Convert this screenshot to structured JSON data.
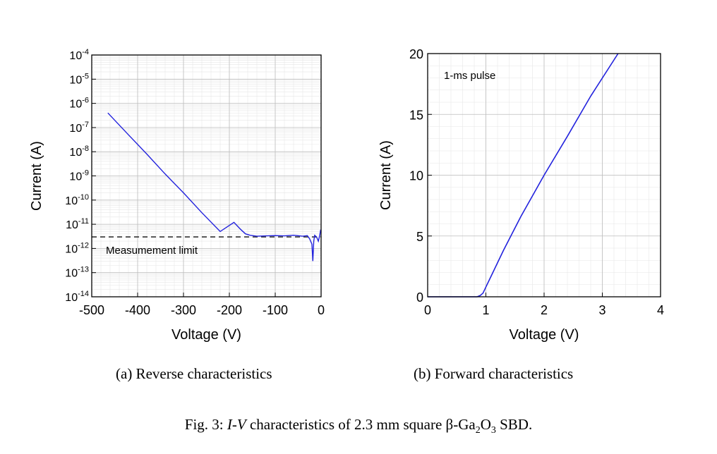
{
  "chart_data": [
    {
      "type": "line",
      "xlabel": "Voltage (V)",
      "ylabel": "Current (A)",
      "xlim": [
        -500,
        0
      ],
      "ylim": [
        1e-14,
        0.0001
      ],
      "yscale": "log",
      "grid": true,
      "x_ticks": [
        "-500",
        "-400",
        "-300",
        "-200",
        "-100",
        "0"
      ],
      "y_ticks": [
        {
          "base": "10",
          "exp": "-4"
        },
        {
          "base": "10",
          "exp": "-5"
        },
        {
          "base": "10",
          "exp": "-6"
        },
        {
          "base": "10",
          "exp": "-7"
        },
        {
          "base": "10",
          "exp": "-8"
        },
        {
          "base": "10",
          "exp": "-9"
        },
        {
          "base": "10",
          "exp": "-10"
        },
        {
          "base": "10",
          "exp": "-11"
        },
        {
          "base": "10",
          "exp": "-12"
        },
        {
          "base": "10",
          "exp": "-13"
        },
        {
          "base": "10",
          "exp": "-14"
        }
      ],
      "series": [
        {
          "color": "#2222dd",
          "x": [
            -465,
            -420,
            -380,
            -340,
            -300,
            -260,
            -220,
            -190,
            -175,
            -165,
            -155,
            -140,
            -120,
            -100,
            -80,
            -60,
            -40,
            -30,
            -25,
            -20,
            -18,
            -16,
            -14,
            -10,
            -6,
            -3,
            -1
          ],
          "y": [
            4e-07,
            5e-08,
            8e-09,
            1.2e-09,
            2e-10,
            3e-11,
            5e-12,
            1.2e-11,
            6e-12,
            4e-12,
            3.5e-12,
            3.2e-12,
            3.3e-12,
            3.4e-12,
            3.3e-12,
            3.5e-12,
            3.2e-12,
            3.4e-12,
            2.5e-12,
            1.5e-12,
            3e-13,
            2e-12,
            3.5e-12,
            3e-12,
            2e-12,
            3.5e-12,
            6e-12
          ]
        }
      ],
      "reference_line": {
        "y": 3e-12,
        "style": "dashed",
        "label": "Measumement limit"
      }
    },
    {
      "type": "line",
      "xlabel": "Voltage (V)",
      "ylabel": "Current (A)",
      "xlim": [
        0,
        4
      ],
      "ylim": [
        0,
        20
      ],
      "grid": true,
      "x_ticks": [
        "0",
        "1",
        "2",
        "3",
        "4"
      ],
      "y_ticks": [
        "0",
        "5",
        "10",
        "15",
        "20"
      ],
      "annotation": "1-ms pulse",
      "series": [
        {
          "color": "#2222dd",
          "x": [
            0,
            0.5,
            0.85,
            0.9,
            0.95,
            1.0,
            1.1,
            1.3,
            1.6,
            2.0,
            2.4,
            2.8,
            3.27
          ],
          "y": [
            0,
            0,
            0,
            0.1,
            0.3,
            0.8,
            1.8,
            3.8,
            6.6,
            10.0,
            13.2,
            16.5,
            20
          ]
        }
      ]
    }
  ],
  "captions": {
    "a": "(a)  Reverse characteristics",
    "b": "(b) Forward characteristics",
    "fig_prefix": "Fig. 3: ",
    "fig_italic": "I-V",
    "fig_rest": " characteristics of 2.3 mm square β-Ga",
    "fig_sub1": "2",
    "fig_mid": "O",
    "fig_sub2": "3",
    "fig_end": " SBD."
  }
}
